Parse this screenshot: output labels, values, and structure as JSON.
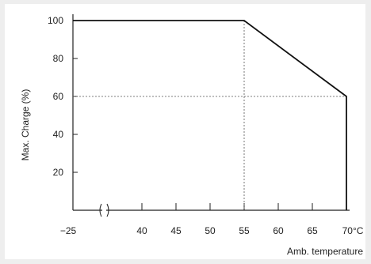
{
  "chart_data": {
    "type": "line",
    "title": "",
    "xlabel": "Amb. temperature",
    "ylabel": "Max. Charge (%)",
    "x_unit": "°C",
    "x_ticks": [
      "-25",
      "40",
      "45",
      "50",
      "55",
      "60",
      "65",
      "70"
    ],
    "y_ticks": [
      "20",
      "40",
      "60",
      "80",
      "100"
    ],
    "axis_break": true,
    "ylim": [
      0,
      100
    ],
    "series": [
      {
        "x": [
          -25,
          55,
          70,
          70
        ],
        "y": [
          100,
          100,
          60,
          0
        ]
      }
    ],
    "reference_lines": [
      {
        "orientation": "vertical",
        "x": 55,
        "style": "dashed"
      },
      {
        "orientation": "horizontal",
        "y": 60,
        "style": "dashed"
      }
    ],
    "grid": false,
    "legend": "none"
  }
}
